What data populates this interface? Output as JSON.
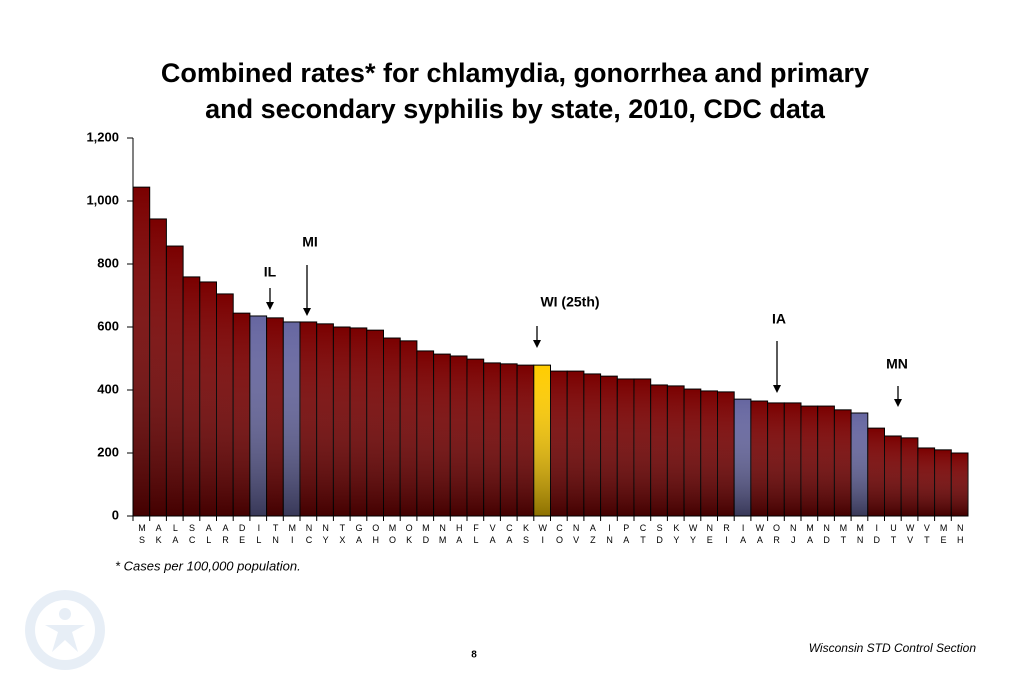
{
  "chart_data": {
    "type": "bar",
    "title": [
      "Combined rates* for chlamydia, gonorrhea and primary",
      "and secondary syphilis by state, 2010, CDC data"
    ],
    "categories": [
      "MS",
      "AK",
      "LA",
      "SC",
      "AL",
      "AR",
      "DE",
      "IL",
      "TN",
      "MI",
      "NC",
      "NY",
      "TX",
      "GA",
      "OH",
      "MO",
      "OK",
      "MD",
      "NM",
      "HA",
      "FL",
      "VA",
      "CA",
      "KS",
      "WI",
      "CO",
      "NV",
      "AZ",
      "IN",
      "PA",
      "CT",
      "SD",
      "KY",
      "WY",
      "NE",
      "RI",
      "IA",
      "WA",
      "OR",
      "NJ",
      "MA",
      "ND",
      "MT",
      "MN",
      "ID",
      "UT",
      "WV",
      "VT",
      "ME",
      "NH"
    ],
    "values": [
      1044,
      943,
      857,
      759,
      743,
      705,
      644,
      635,
      629,
      616,
      616,
      610,
      600,
      597,
      590,
      565,
      556,
      524,
      514,
      508,
      498,
      486,
      483,
      479,
      479,
      460,
      460,
      451,
      444,
      435,
      435,
      416,
      413,
      403,
      397,
      394,
      371,
      365,
      359,
      359,
      349,
      349,
      337,
      327,
      279,
      254,
      248,
      216,
      210,
      200
    ],
    "colors": [
      "#7a0000",
      "#7a0000",
      "#7a0000",
      "#7a0000",
      "#7a0000",
      "#7a0000",
      "#7a0000",
      "#6666a0",
      "#7a0000",
      "#6666a0",
      "#7a0000",
      "#7a0000",
      "#7a0000",
      "#7a0000",
      "#7a0000",
      "#7a0000",
      "#7a0000",
      "#7a0000",
      "#7a0000",
      "#7a0000",
      "#7a0000",
      "#7a0000",
      "#7a0000",
      "#7a0000",
      "#ffcc00",
      "#7a0000",
      "#7a0000",
      "#7a0000",
      "#7a0000",
      "#7a0000",
      "#7a0000",
      "#7a0000",
      "#7a0000",
      "#7a0000",
      "#7a0000",
      "#7a0000",
      "#6666a0",
      "#7a0000",
      "#7a0000",
      "#7a0000",
      "#7a0000",
      "#7a0000",
      "#7a0000",
      "#6666a0",
      "#7a0000",
      "#7a0000",
      "#7a0000",
      "#7a0000",
      "#7a0000",
      "#7a0000"
    ],
    "ylim": [
      0,
      1200
    ],
    "yticks": [
      0,
      200,
      400,
      600,
      800,
      {
        "value": 1000,
        "label": "1,000"
      },
      {
        "value": 1200,
        "label": "1,200"
      }
    ],
    "annotations": [
      "IL",
      "MI",
      "WI (25th)",
      "IA",
      "MN"
    ],
    "footnote": "* Cases per 100,000 population."
  },
  "footer": {
    "source": "Wisconsin STD Control Section",
    "page": "8"
  }
}
